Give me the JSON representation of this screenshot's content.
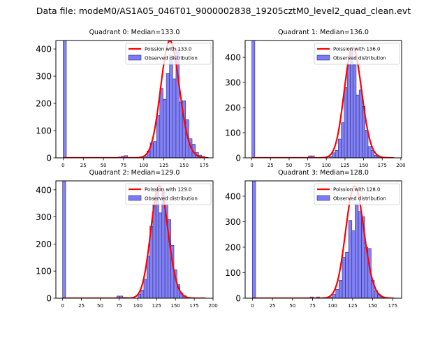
{
  "title": "Data file: modeM0/AS1A05_046T01_9000002838_19205cztM0_level2_quad_clean.evt",
  "colors": {
    "bar_fill": "#7b7bf5",
    "bar_edge": "#2a2a7a",
    "curve": "#ff0000"
  },
  "chart_data": [
    {
      "type": "bar",
      "title": "Quadrant 0: Median=133.0",
      "xlim": [
        -9,
        186
      ],
      "ylim": [
        0,
        431
      ],
      "xticks": [
        0,
        25,
        50,
        75,
        100,
        125,
        150,
        175
      ],
      "yticks": [
        0,
        100,
        200,
        300,
        400
      ],
      "bin_width": 4,
      "bins": [
        0,
        68,
        72,
        76,
        100,
        104,
        108,
        112,
        116,
        120,
        124,
        128,
        132,
        136,
        140,
        144,
        148,
        152,
        156,
        160,
        164,
        168,
        172,
        176
      ],
      "values": [
        1200,
        3,
        6,
        8,
        5,
        25,
        55,
        60,
        155,
        255,
        215,
        310,
        375,
        290,
        400,
        205,
        210,
        140,
        70,
        50,
        20,
        10,
        5,
        2
      ],
      "poisson": {
        "lambda": 133.0,
        "peak": 430,
        "x_range": [
          0,
          178
        ]
      },
      "legend": {
        "line": "Poission with 133.0",
        "bars": "Observed distribution",
        "loc": "top-right"
      }
    },
    {
      "type": "bar",
      "title": "Quadrant 1: Median=136.0",
      "xlim": [
        -9,
        201
      ],
      "ylim": [
        0,
        467
      ],
      "xticks": [
        0,
        25,
        50,
        75,
        100,
        125,
        150,
        175,
        200
      ],
      "yticks": [
        0,
        100,
        200,
        300,
        400
      ],
      "bin_width": 4,
      "bins": [
        0,
        76,
        80,
        104,
        108,
        112,
        116,
        120,
        124,
        128,
        132,
        136,
        140,
        144,
        148,
        152,
        156,
        160,
        164,
        168,
        172,
        188
      ],
      "values": [
        1200,
        8,
        8,
        5,
        20,
        30,
        75,
        140,
        280,
        370,
        440,
        370,
        250,
        270,
        205,
        110,
        45,
        30,
        10,
        5,
        2,
        1
      ],
      "poisson": {
        "lambda": 136.0,
        "peak": 440,
        "x_range": [
          0,
          190
        ]
      },
      "legend": {
        "line": "Poission with 136.0",
        "bars": "Observed distribution",
        "loc": "top-right"
      }
    },
    {
      "type": "bar",
      "title": "Quadrant 2: Median=129.0",
      "xlim": [
        -9,
        200
      ],
      "ylim": [
        0,
        433
      ],
      "xticks": [
        0,
        25,
        50,
        75,
        100,
        125,
        150,
        175,
        200
      ],
      "yticks": [
        0,
        100,
        200,
        300,
        400
      ],
      "bin_width": 4,
      "bins": [
        0,
        72,
        76,
        80,
        84,
        100,
        104,
        108,
        112,
        116,
        120,
        124,
        128,
        132,
        136,
        140,
        144,
        148,
        152,
        156,
        160,
        164
      ],
      "values": [
        1200,
        8,
        8,
        3,
        3,
        15,
        30,
        70,
        155,
        265,
        345,
        400,
        315,
        400,
        345,
        290,
        195,
        105,
        50,
        20,
        10,
        3
      ],
      "poisson": {
        "lambda": 129.0,
        "peak": 415,
        "x_range": [
          0,
          190
        ]
      },
      "legend": {
        "line": "Poission with 129.0",
        "bars": "Observed distribution",
        "loc": "top-right"
      }
    },
    {
      "type": "bar",
      "title": "Quadrant 3: Median=128.0",
      "xlim": [
        -9,
        186
      ],
      "ylim": [
        0,
        460
      ],
      "xticks": [
        0,
        25,
        50,
        75,
        100,
        125,
        150,
        175
      ],
      "yticks": [
        0,
        100,
        200,
        300,
        400
      ],
      "bin_width": 4,
      "bins": [
        0,
        72,
        80,
        88,
        96,
        100,
        104,
        108,
        112,
        116,
        120,
        124,
        128,
        132,
        136,
        140,
        144,
        148,
        152,
        156,
        160,
        164
      ],
      "values": [
        1200,
        5,
        5,
        3,
        5,
        15,
        35,
        70,
        160,
        180,
        305,
        265,
        370,
        340,
        320,
        200,
        195,
        70,
        30,
        15,
        5,
        3
      ],
      "poisson": {
        "lambda": 128.0,
        "peak": 440,
        "x_range": [
          0,
          176
        ]
      },
      "legend": {
        "line": "Poission with 128.0",
        "bars": "Observed distribution",
        "loc": "top-right"
      }
    }
  ]
}
